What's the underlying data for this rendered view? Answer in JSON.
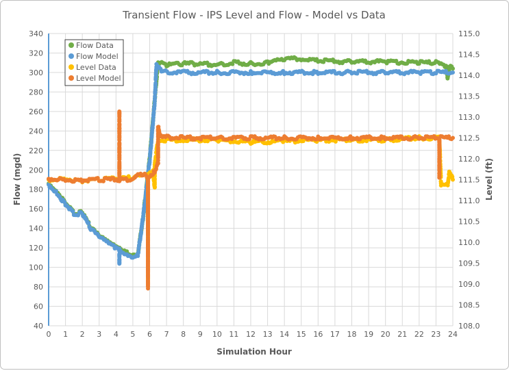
{
  "chart_data": {
    "type": "scatter",
    "title": "Transient Flow - IPS Level and Flow - Model vs Data",
    "xlabel": "Simulation Hour",
    "ylabel": "Flow (mgd)",
    "y2label": "Level (ft)",
    "xlim": [
      0,
      24
    ],
    "ylim": [
      40,
      340
    ],
    "y2lim": [
      108,
      115
    ],
    "xticks": [
      "0",
      "1",
      "2",
      "3",
      "4",
      "5",
      "6",
      "7",
      "8",
      "9",
      "10",
      "11",
      "12",
      "13",
      "14",
      "15",
      "16",
      "17",
      "18",
      "19",
      "20",
      "21",
      "22",
      "23",
      "24"
    ],
    "yticks": [
      "40",
      "60",
      "80",
      "100",
      "120",
      "140",
      "160",
      "180",
      "200",
      "220",
      "240",
      "260",
      "280",
      "300",
      "320",
      "340"
    ],
    "y2ticks": [
      "108.0",
      "108.5",
      "109.0",
      "109.5",
      "110.0",
      "110.5",
      "111.0",
      "111.5",
      "112.0",
      "112.5",
      "113.0",
      "113.5",
      "114.0",
      "114.5",
      "115.0"
    ],
    "grid": true,
    "legend_position": "top-left",
    "series": [
      {
        "name": "Flow Data",
        "axis": "left",
        "color": "#70ad47",
        "points": [
          [
            0,
            186
          ],
          [
            0.5,
            178
          ],
          [
            1,
            166
          ],
          [
            1.5,
            156
          ],
          [
            2,
            156
          ],
          [
            2.5,
            141
          ],
          [
            3,
            132
          ],
          [
            3.5,
            126
          ],
          [
            4,
            121
          ],
          [
            4.5,
            116
          ],
          [
            5,
            112
          ],
          [
            5.3,
            114
          ],
          [
            5.6,
            150
          ],
          [
            6,
            212
          ],
          [
            6.3,
            272
          ],
          [
            6.5,
            311
          ],
          [
            7,
            308
          ],
          [
            8,
            309
          ],
          [
            9,
            309
          ],
          [
            10,
            308
          ],
          [
            11,
            310
          ],
          [
            12,
            309
          ],
          [
            13,
            310
          ],
          [
            13.5,
            314
          ],
          [
            15,
            314
          ],
          [
            16,
            312
          ],
          [
            18,
            311
          ],
          [
            20,
            311
          ],
          [
            22,
            310
          ],
          [
            23,
            310
          ],
          [
            23.6,
            306
          ],
          [
            23.7,
            294
          ],
          [
            23.8,
            306
          ],
          [
            24,
            304
          ]
        ]
      },
      {
        "name": "Flow Model",
        "axis": "left",
        "color": "#5b9bd5",
        "points": [
          [
            0,
            185
          ],
          [
            0.5,
            176
          ],
          [
            1,
            165
          ],
          [
            1.5,
            155
          ],
          [
            2,
            155
          ],
          [
            2.5,
            140
          ],
          [
            3,
            131
          ],
          [
            3.5,
            125
          ],
          [
            4,
            120
          ],
          [
            4.2,
            118
          ],
          [
            4.2,
            103
          ],
          [
            4.2,
            118
          ],
          [
            4.5,
            115
          ],
          [
            5,
            111
          ],
          [
            5.3,
            113
          ],
          [
            5.6,
            150
          ],
          [
            6,
            210
          ],
          [
            6.3,
            270
          ],
          [
            6.4,
            308
          ],
          [
            6.7,
            301
          ],
          [
            8,
            300
          ],
          [
            10,
            300
          ],
          [
            12,
            300
          ],
          [
            14,
            300
          ],
          [
            16,
            300
          ],
          [
            18,
            300
          ],
          [
            20,
            300
          ],
          [
            22,
            300
          ],
          [
            23,
            300
          ],
          [
            24,
            300
          ]
        ]
      },
      {
        "name": "Level Data",
        "axis": "right",
        "color": "#ffc000",
        "points": [
          [
            0,
            111.5
          ],
          [
            1,
            111.52
          ],
          [
            2,
            111.47
          ],
          [
            3,
            111.5
          ],
          [
            4,
            111.52
          ],
          [
            5,
            111.55
          ],
          [
            5.5,
            111.6
          ],
          [
            5.9,
            111.6
          ],
          [
            5.9,
            109.0
          ],
          [
            5.9,
            111.6
          ],
          [
            6.2,
            111.7
          ],
          [
            6.3,
            111.3
          ],
          [
            6.3,
            111.9
          ],
          [
            6.5,
            112.45
          ],
          [
            8,
            112.45
          ],
          [
            10,
            112.45
          ],
          [
            12,
            112.4
          ],
          [
            14,
            112.42
          ],
          [
            16,
            112.45
          ],
          [
            18,
            112.45
          ],
          [
            20,
            112.45
          ],
          [
            22,
            112.5
          ],
          [
            23.2,
            112.5
          ],
          [
            23.3,
            111.4
          ],
          [
            23.7,
            111.4
          ],
          [
            23.8,
            111.7
          ],
          [
            24,
            111.5
          ]
        ]
      },
      {
        "name": "Level Model",
        "axis": "right",
        "color": "#ed7d31",
        "points": [
          [
            0,
            111.52
          ],
          [
            1,
            111.5
          ],
          [
            2,
            111.48
          ],
          [
            3,
            111.5
          ],
          [
            4,
            111.5
          ],
          [
            4.2,
            111.5
          ],
          [
            4.2,
            113.13
          ],
          [
            4.2,
            111.5
          ],
          [
            5,
            111.5
          ],
          [
            5.3,
            111.6
          ],
          [
            5.7,
            111.62
          ],
          [
            5.9,
            111.55
          ],
          [
            5.9,
            108.93
          ],
          [
            5.9,
            111.55
          ],
          [
            6.3,
            111.7
          ],
          [
            6.5,
            111.9
          ],
          [
            6.5,
            112.8
          ],
          [
            6.6,
            112.52
          ],
          [
            8,
            112.5
          ],
          [
            10,
            112.5
          ],
          [
            12,
            112.5
          ],
          [
            14,
            112.5
          ],
          [
            16,
            112.5
          ],
          [
            18,
            112.5
          ],
          [
            20,
            112.5
          ],
          [
            22,
            112.5
          ],
          [
            23.2,
            112.5
          ],
          [
            23.2,
            111.55
          ],
          [
            23.2,
            112.5
          ],
          [
            24,
            112.5
          ]
        ]
      }
    ]
  }
}
